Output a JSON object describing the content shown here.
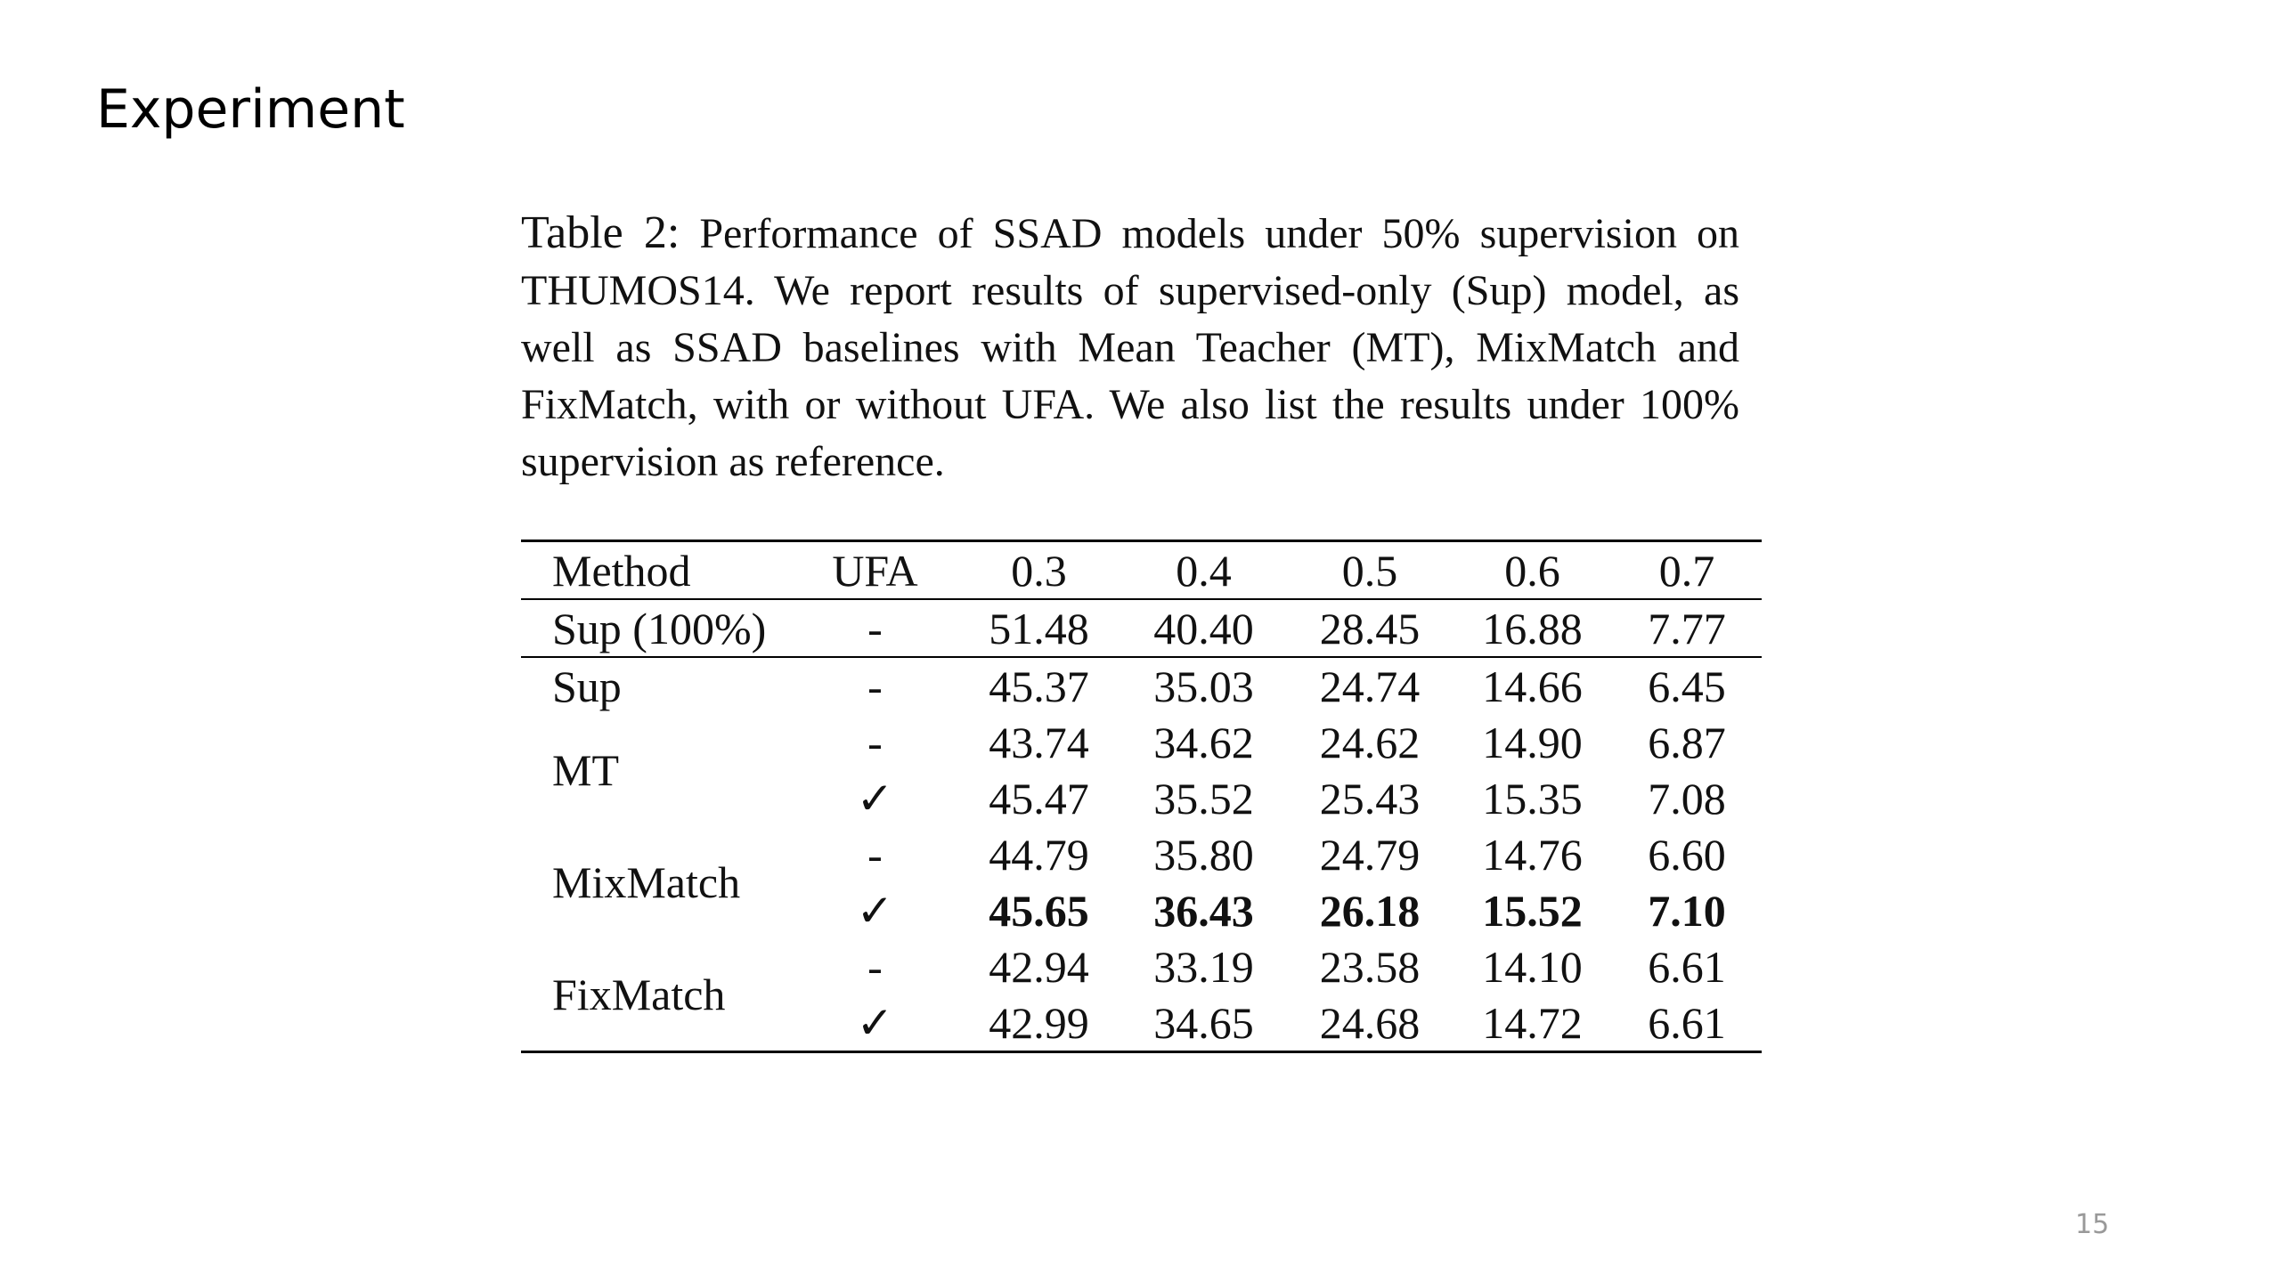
{
  "header": {
    "title": "Experiment"
  },
  "caption": {
    "label": "Table 2:",
    "text": "Performance of SSAD models under 50% supervision on THUMOS14.  We report results of supervised-only (Sup) model, as well as SSAD baselines with Mean Teacher (MT), MixMatch and FixMatch, with or without UFA. We also list the results under 100% supervision as reference."
  },
  "table": {
    "columns": [
      "Method",
      "UFA",
      "0.3",
      "0.4",
      "0.5",
      "0.6",
      "0.7"
    ],
    "groups": [
      {
        "method": "Sup (100%)",
        "rows": [
          {
            "ufa": "-",
            "values": [
              "51.48",
              "40.40",
              "28.45",
              "16.88",
              "7.77"
            ]
          }
        ]
      },
      {
        "method": "Sup",
        "rows": [
          {
            "ufa": "-",
            "values": [
              "45.37",
              "35.03",
              "24.74",
              "14.66",
              "6.45"
            ]
          }
        ]
      },
      {
        "method": "MT",
        "rows": [
          {
            "ufa": "-",
            "values": [
              "43.74",
              "34.62",
              "24.62",
              "14.90",
              "6.87"
            ]
          },
          {
            "ufa": "✓",
            "values": [
              "45.47",
              "35.52",
              "25.43",
              "15.35",
              "7.08"
            ]
          }
        ]
      },
      {
        "method": "MixMatch",
        "rows": [
          {
            "ufa": "-",
            "values": [
              "44.79",
              "35.80",
              "24.79",
              "14.76",
              "6.60"
            ]
          },
          {
            "ufa": "✓",
            "values": [
              "45.65",
              "36.43",
              "26.18",
              "15.52",
              "7.10"
            ],
            "bold": true
          }
        ]
      },
      {
        "method": "FixMatch",
        "rows": [
          {
            "ufa": "-",
            "values": [
              "42.94",
              "33.19",
              "23.58",
              "14.10",
              "6.61"
            ]
          },
          {
            "ufa": "✓",
            "values": [
              "42.99",
              "34.65",
              "24.68",
              "14.72",
              "6.61"
            ]
          }
        ]
      }
    ]
  },
  "page_number": "15"
}
